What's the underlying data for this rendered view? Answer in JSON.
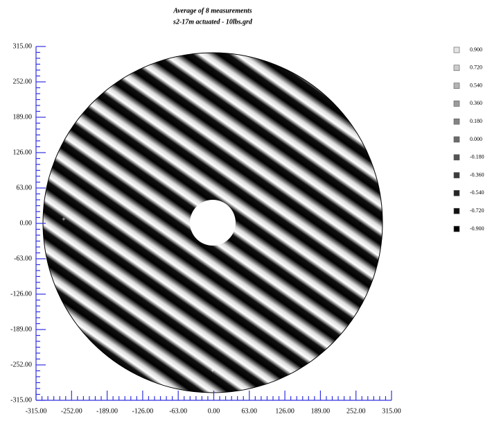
{
  "chart_data": {
    "type": "contour",
    "title": "Average of 8 measurements",
    "subtitle": "s2-17m actuated - 10lbs.grd",
    "xlim": [
      -315,
      315
    ],
    "ylim": [
      -315,
      315
    ],
    "xticks": [
      {
        "value": -315,
        "label": "-315.00"
      },
      {
        "value": -252,
        "label": "-252.00"
      },
      {
        "value": -189,
        "label": "-189.00"
      },
      {
        "value": -126,
        "label": "-126.00"
      },
      {
        "value": -63,
        "label": "-63.00"
      },
      {
        "value": 0,
        "label": "0.00"
      },
      {
        "value": 63,
        "label": "63.00"
      },
      {
        "value": 126,
        "label": "126.00"
      },
      {
        "value": 189,
        "label": "189.00"
      },
      {
        "value": 252,
        "label": "252.00"
      },
      {
        "value": 315,
        "label": "315.00"
      }
    ],
    "yticks": [
      {
        "value": 315,
        "label": "315.00"
      },
      {
        "value": 252,
        "label": "252.00"
      },
      {
        "value": 189,
        "label": "189.00"
      },
      {
        "value": 126,
        "label": "126.00"
      },
      {
        "value": 63,
        "label": "63.00"
      },
      {
        "value": 0,
        "label": "0.00"
      },
      {
        "value": -63,
        "label": "-63.00"
      },
      {
        "value": -126,
        "label": "-126.00"
      },
      {
        "value": -189,
        "label": "-189.00"
      },
      {
        "value": -252,
        "label": "-252.00"
      },
      {
        "value": -315,
        "label": "-315.00"
      }
    ],
    "levels": [
      {
        "value": 0.9,
        "label": "0.900"
      },
      {
        "value": 0.72,
        "label": "0.720"
      },
      {
        "value": 0.54,
        "label": "0.540"
      },
      {
        "value": 0.36,
        "label": "0.360"
      },
      {
        "value": 0.18,
        "label": "0.180"
      },
      {
        "value": 0,
        "label": "0.000"
      },
      {
        "value": -0.18,
        "label": "-0.180"
      },
      {
        "value": -0.36,
        "label": "-0.360"
      },
      {
        "value": -0.54,
        "label": "-0.540"
      },
      {
        "value": -0.72,
        "label": "-0.720"
      },
      {
        "value": -0.9,
        "label": "-0.900"
      }
    ],
    "colors": [
      "#e4e4e4",
      "#cccccc",
      "#b4b4b4",
      "#9c9c9c",
      "#848484",
      "#6c6c6c",
      "#545454",
      "#3c3c3c",
      "#262626",
      "#121212",
      "#000000"
    ]
  }
}
